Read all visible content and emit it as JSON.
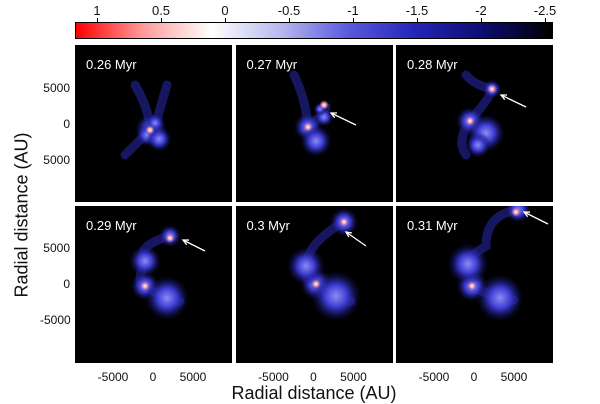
{
  "colorbar": {
    "ticks": [
      "1",
      "0.5",
      "0",
      "-0.5",
      "-1",
      "-1.5",
      "-2",
      "-2.5"
    ],
    "range": [
      1,
      -2.5
    ],
    "colors": [
      "#ff0000",
      "#ffffff",
      "#2525b8",
      "#000000"
    ]
  },
  "panels": [
    {
      "time": "0.26 Myr",
      "arrow": false
    },
    {
      "time": "0.27 Myr",
      "arrow": true
    },
    {
      "time": "0.28 Myr",
      "arrow": true
    },
    {
      "time": "0.29 Myr",
      "arrow": true
    },
    {
      "time": "0.3 Myr",
      "arrow": true
    },
    {
      "time": "0.31 Myr",
      "arrow": true
    }
  ],
  "axes": {
    "ylabel": "Radial distance (AU)",
    "xlabel": "Radial distance (AU)",
    "yticks_top": [
      "5000",
      "0",
      "5000"
    ],
    "yticks_bottom": [
      "5000",
      "0",
      "-5000"
    ],
    "xticks": [
      "-5000",
      "0",
      "5000"
    ]
  }
}
